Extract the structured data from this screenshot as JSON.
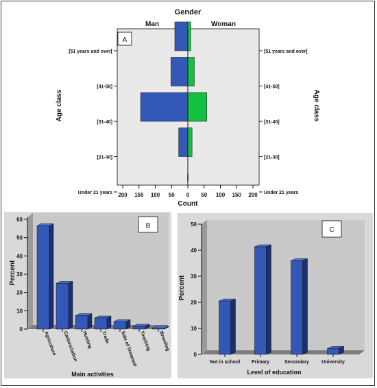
{
  "colors": {
    "man": "#3358b7",
    "woman": "#12c23e",
    "bar3d_front": "#3358b7",
    "bar3d_side": "#1c2f6e",
    "bar3d_top": "#4f74d0",
    "plot_bg": "#e9e9e9",
    "panel_bg": "#d9d9d9",
    "wall_bg": "#c4c4c4"
  },
  "chart_data": [
    {
      "type": "bar",
      "panel_label": "A",
      "orientation": "horizontal-pyramid",
      "title": "Gender",
      "left_group": "Man",
      "right_group": "Woman",
      "xlabel": "Count",
      "ylabel_left": "Age class",
      "ylabel_right": "Age class",
      "categories": [
        "[51 years and over[",
        "[41-50]",
        "[31-40]",
        "[21-30]",
        "Under 21 years"
      ],
      "xtick_labels": [
        "200",
        "150",
        "100",
        "50",
        "0",
        "50",
        "100",
        "150",
        "200"
      ],
      "xlim": [
        0,
        200
      ],
      "grid": false,
      "series": [
        {
          "name": "Man",
          "values": [
            40,
            52,
            145,
            28,
            1
          ]
        },
        {
          "name": "Woman",
          "values": [
            9,
            20,
            58,
            13,
            1
          ]
        }
      ]
    },
    {
      "type": "bar",
      "panel_label": "B",
      "xlabel": "Main activities",
      "ylabel": "Percent",
      "ylim": [
        0,
        60
      ],
      "yticks": [
        "0",
        "10",
        "20",
        "30",
        "40",
        "50",
        "60"
      ],
      "grid": false,
      "categories": [
        "Agriculture",
        "Carbonization",
        "Hunting",
        "Trade",
        "Sale of firewood",
        "Teaching",
        "Breeding"
      ],
      "values": [
        56.5,
        25,
        7.3,
        6,
        4,
        1.5,
        0.5
      ]
    },
    {
      "type": "bar",
      "panel_label": "C",
      "xlabel": "Level of education",
      "ylabel": "Percent",
      "ylim": [
        0,
        50
      ],
      "yticks": [
        "0",
        "10",
        "20",
        "30",
        "40",
        "50"
      ],
      "grid": false,
      "categories": [
        "Not in school",
        "Primary",
        "Secondary",
        "University"
      ],
      "values": [
        20.5,
        41.3,
        36,
        2.3
      ]
    }
  ]
}
